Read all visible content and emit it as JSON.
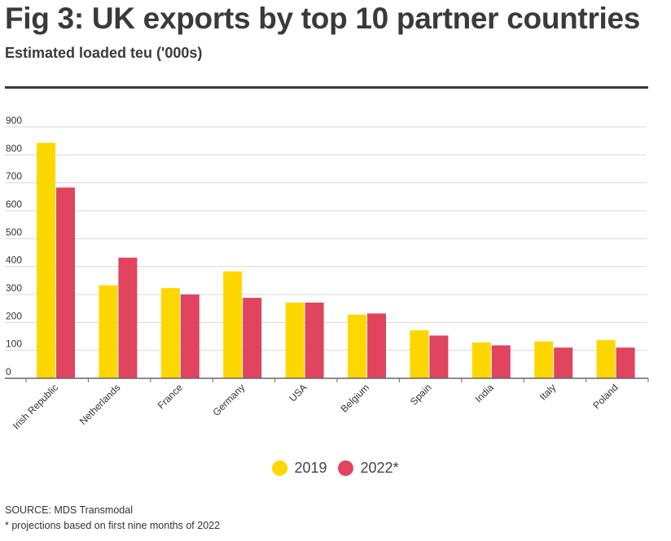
{
  "header": {
    "title": "Fig 3: UK exports by top 10 partner countries",
    "subtitle": "Estimated loaded teu ('000s)"
  },
  "footer": {
    "source": "SOURCE: MDS Transmodal",
    "note": "* projections based on first nine months of 2022"
  },
  "colors": {
    "series_2019": "#ffd700",
    "series_2022": "#e0445e",
    "grid": "#d9d9d9",
    "axis": "#666666"
  },
  "chart_data": {
    "type": "bar",
    "title": "Fig 3: UK exports by top 10 partner countries",
    "subtitle": "Estimated loaded teu ('000s)",
    "categories": [
      "Irish Republic",
      "Netherlands",
      "France",
      "Germany",
      "USA",
      "Belgium",
      "Spain",
      "India",
      "Italy",
      "Poland"
    ],
    "series": [
      {
        "name": "2019",
        "values": [
          843,
          333,
          323,
          383,
          271,
          228,
          172,
          128,
          132,
          137
        ]
      },
      {
        "name": "2022*",
        "values": [
          683,
          432,
          300,
          288,
          271,
          232,
          153,
          118,
          110,
          110
        ]
      }
    ],
    "yticks": [
      0,
      100,
      200,
      300,
      400,
      500,
      600,
      700,
      800,
      900
    ],
    "ylim": [
      0,
      900
    ],
    "grid": true,
    "legend_position": "bottom-center"
  }
}
